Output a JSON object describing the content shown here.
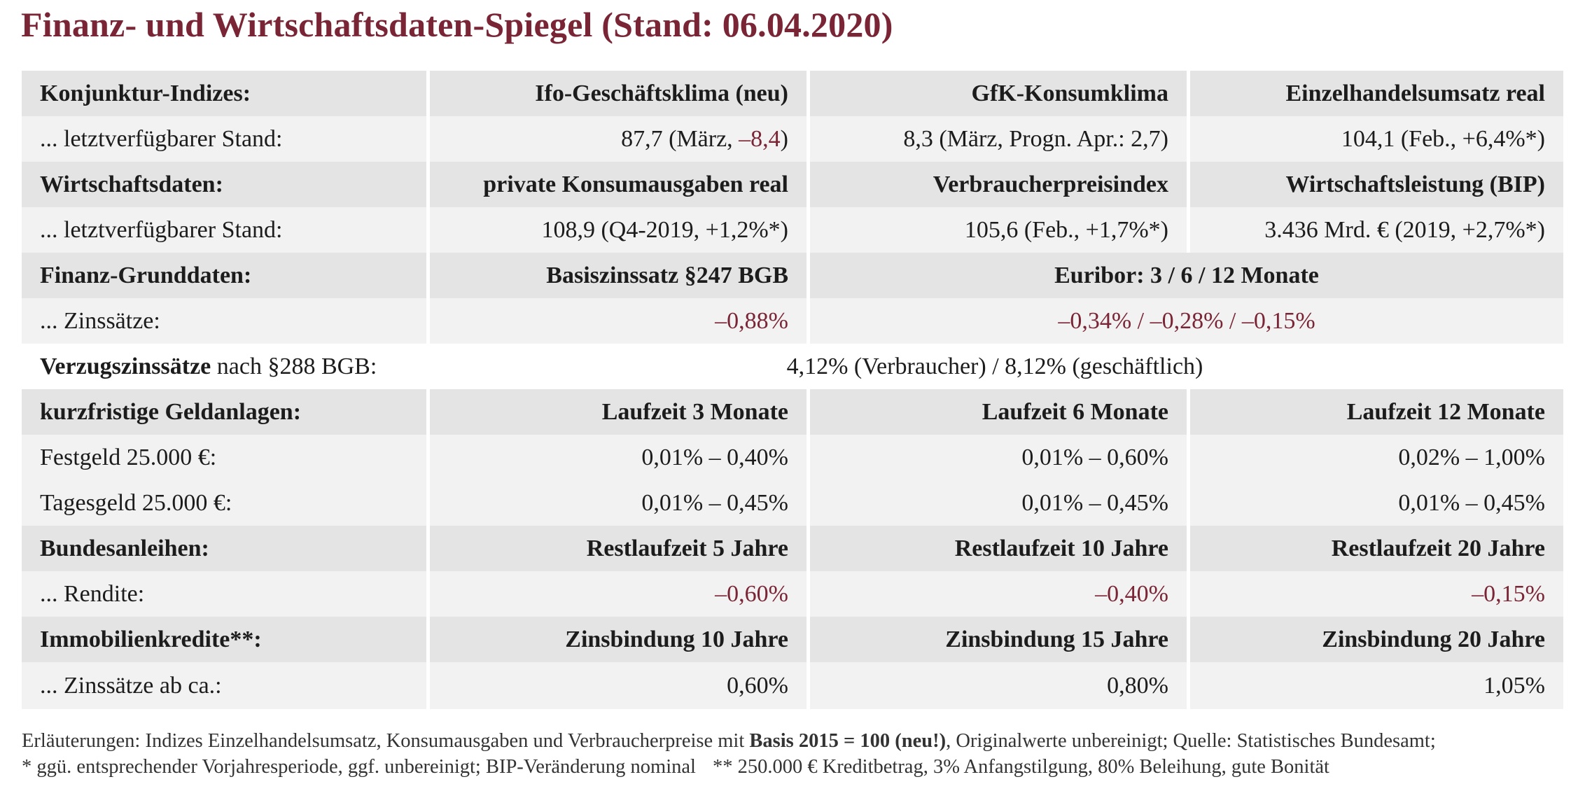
{
  "title": "Finanz- und Wirtschaftsdaten-Spiegel (Stand: 06.04.2020)",
  "konjunktur": {
    "label": "Konjunktur-Indizes:",
    "headers": [
      "Ifo-Geschäftsklima (neu)",
      "GfK-Konsumklima",
      "Einzelhandelsumsatz real"
    ],
    "row_label": "... letztverfügbarer Stand:",
    "ifo_prefix": "87,7 (März, ",
    "ifo_change": "–8,4",
    "ifo_suffix": ")",
    "gfk": "8,3 (März, Progn. Apr.: 2,7)",
    "einzelhandel": "104,1 (Feb., +6,4%*)"
  },
  "wirtschaft": {
    "label": "Wirtschaftsdaten:",
    "headers": [
      "private Konsumausgaben real",
      "Verbraucherpreisindex",
      "Wirtschaftsleistung (BIP)"
    ],
    "row_label": "... letztverfügbarer Stand:",
    "values": [
      "108,9 (Q4-2019, +1,2%*)",
      "105,6 (Feb., +1,7%*)",
      "3.436 Mrd. € (2019, +2,7%*)"
    ]
  },
  "finanz": {
    "label": "Finanz-Grunddaten:",
    "headers": [
      "Basiszinssatz §247 BGB",
      "Euribor: 3 / 6 / 12 Monate"
    ],
    "row_label": "... Zinssätze:",
    "values": [
      "–0,88%",
      "–0,34% / –0,28% / –0,15%"
    ]
  },
  "verzug": {
    "label_bold": "Verzugszinssätze",
    "label_rest": " nach §288 BGB:",
    "value": "4,12% (Verbraucher) / 8,12% (geschäftlich)"
  },
  "geldanlagen": {
    "label": "kurzfristige Geldanlagen:",
    "headers": [
      "Laufzeit 3 Monate",
      "Laufzeit 6 Monate",
      "Laufzeit 12 Monate"
    ],
    "rows": [
      {
        "label": "Festgeld 25.000 €:",
        "values": [
          "0,01% – 0,40%",
          "0,01% – 0,60%",
          "0,02% – 1,00%"
        ]
      },
      {
        "label": "Tagesgeld 25.000 €:",
        "values": [
          "0,01% – 0,45%",
          "0,01% – 0,45%",
          "0,01% – 0,45%"
        ]
      }
    ]
  },
  "bundesanleihen": {
    "label": "Bundesanleihen:",
    "headers": [
      "Restlaufzeit 5 Jahre",
      "Restlaufzeit 10 Jahre",
      "Restlaufzeit 20 Jahre"
    ],
    "row_label": "... Rendite:",
    "values": [
      "–0,60%",
      "–0,40%",
      "–0,15%"
    ]
  },
  "immobilien": {
    "label": "Immobilienkredite**:",
    "headers": [
      "Zinsbindung 10 Jahre",
      "Zinsbindung 15 Jahre",
      "Zinsbindung 20 Jahre"
    ],
    "row_label": "... Zinssätze ab ca.:",
    "values": [
      "0,60%",
      "0,80%",
      "1,05%"
    ]
  },
  "notes": {
    "line1_a": "Erläuterungen: Indizes Einzelhandelsumsatz, Konsumausgaben und Verbraucherpreise mit ",
    "line1_bold": "Basis 2015 = 100 (neu!)",
    "line1_b": ", Originalwerte unbereinigt; Quelle: Statistisches Bundesamt;",
    "line2_a": "* ggü. entsprechender Vorjahresperiode, ggf. unbereinigt; BIP-Veränderung nominal",
    "line2_b": "** 250.000 € Kreditbetrag, 3% Anfangstilgung, 80% Beleihung, gute Bonität"
  },
  "colors": {
    "accent": "#7a2535",
    "row_dark": "#e4e4e4",
    "row_light": "#f2f2f2"
  }
}
